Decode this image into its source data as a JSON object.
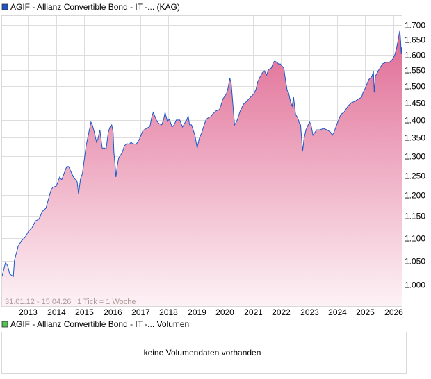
{
  "chart_data": {
    "type": "area",
    "title": "AGIF - Allianz Convertible Bond - IT -... (KAG)",
    "date_range": "31.01.12 - 15.04.26",
    "tick_info": "1 Tick = 1 Woche",
    "y_scale": "log",
    "ylim": [
      0.955,
      1.73
    ],
    "xlim": [
      2012.08,
      2026.3
    ],
    "y_ticks": [
      "1.000",
      "1.050",
      "1.100",
      "1.150",
      "1.200",
      "1.250",
      "1.300",
      "1.350",
      "1.400",
      "1.450",
      "1.500",
      "1.550",
      "1.600",
      "1.650",
      "1.700"
    ],
    "y_tick_values": [
      1.0,
      1.05,
      1.1,
      1.15,
      1.2,
      1.25,
      1.3,
      1.35,
      1.4,
      1.45,
      1.5,
      1.55,
      1.6,
      1.65,
      1.7
    ],
    "x_ticks": [
      "2013",
      "2014",
      "2015",
      "2016",
      "2017",
      "2018",
      "2019",
      "2020",
      "2021",
      "2022",
      "2023",
      "2024",
      "2025",
      "2026"
    ],
    "x_tick_values": [
      2013,
      2014,
      2015,
      2016,
      2017,
      2018,
      2019,
      2020,
      2021,
      2022,
      2023,
      2024,
      2025,
      2026
    ],
    "grid": true,
    "series": [
      {
        "name": "AGIF - Allianz Convertible Bond - IT -... (KAG)",
        "color": "#1a56c8",
        "points": [
          [
            2012.08,
            1.017
          ],
          [
            2012.2,
            1.046
          ],
          [
            2012.28,
            1.039
          ],
          [
            2012.35,
            1.022
          ],
          [
            2012.48,
            1.017
          ],
          [
            2012.52,
            1.051
          ],
          [
            2012.6,
            1.069
          ],
          [
            2012.65,
            1.081
          ],
          [
            2012.77,
            1.094
          ],
          [
            2012.89,
            1.101
          ],
          [
            2013.02,
            1.115
          ],
          [
            2013.14,
            1.123
          ],
          [
            2013.27,
            1.139
          ],
          [
            2013.39,
            1.143
          ],
          [
            2013.51,
            1.161
          ],
          [
            2013.64,
            1.169
          ],
          [
            2013.71,
            1.186
          ],
          [
            2013.81,
            1.211
          ],
          [
            2013.88,
            1.22
          ],
          [
            2014.01,
            1.223
          ],
          [
            2014.13,
            1.246
          ],
          [
            2014.2,
            1.239
          ],
          [
            2014.3,
            1.258
          ],
          [
            2014.38,
            1.273
          ],
          [
            2014.45,
            1.273
          ],
          [
            2014.5,
            1.264
          ],
          [
            2014.62,
            1.246
          ],
          [
            2014.75,
            1.234
          ],
          [
            2014.8,
            1.203
          ],
          [
            2014.87,
            1.241
          ],
          [
            2014.94,
            1.255
          ],
          [
            2015.02,
            1.3
          ],
          [
            2015.07,
            1.328
          ],
          [
            2015.12,
            1.347
          ],
          [
            2015.19,
            1.374
          ],
          [
            2015.24,
            1.394
          ],
          [
            2015.29,
            1.386
          ],
          [
            2015.36,
            1.366
          ],
          [
            2015.44,
            1.338
          ],
          [
            2015.49,
            1.347
          ],
          [
            2015.56,
            1.372
          ],
          [
            2015.64,
            1.322
          ],
          [
            2015.73,
            1.322
          ],
          [
            2015.78,
            1.319
          ],
          [
            2015.86,
            1.366
          ],
          [
            2015.93,
            1.382
          ],
          [
            2015.98,
            1.386
          ],
          [
            2016.03,
            1.366
          ],
          [
            2016.06,
            1.309
          ],
          [
            2016.1,
            1.276
          ],
          [
            2016.13,
            1.246
          ],
          [
            2016.18,
            1.276
          ],
          [
            2016.23,
            1.296
          ],
          [
            2016.35,
            1.309
          ],
          [
            2016.43,
            1.328
          ],
          [
            2016.52,
            1.334
          ],
          [
            2016.6,
            1.332
          ],
          [
            2016.67,
            1.338
          ],
          [
            2016.72,
            1.334
          ],
          [
            2016.85,
            1.332
          ],
          [
            2016.97,
            1.347
          ],
          [
            2017.09,
            1.37
          ],
          [
            2017.22,
            1.376
          ],
          [
            2017.34,
            1.382
          ],
          [
            2017.41,
            1.41
          ],
          [
            2017.46,
            1.422
          ],
          [
            2017.59,
            1.396
          ],
          [
            2017.66,
            1.39
          ],
          [
            2017.76,
            1.386
          ],
          [
            2017.83,
            1.402
          ],
          [
            2017.88,
            1.422
          ],
          [
            2017.96,
            1.396
          ],
          [
            2018.03,
            1.402
          ],
          [
            2018.13,
            1.38
          ],
          [
            2018.2,
            1.386
          ],
          [
            2018.28,
            1.4
          ],
          [
            2018.4,
            1.4
          ],
          [
            2018.5,
            1.38
          ],
          [
            2018.57,
            1.39
          ],
          [
            2018.65,
            1.4
          ],
          [
            2018.7,
            1.412
          ],
          [
            2018.75,
            1.386
          ],
          [
            2018.82,
            1.386
          ],
          [
            2018.94,
            1.357
          ],
          [
            2019.02,
            1.322
          ],
          [
            2019.09,
            1.347
          ],
          [
            2019.19,
            1.366
          ],
          [
            2019.27,
            1.386
          ],
          [
            2019.34,
            1.402
          ],
          [
            2019.41,
            1.406
          ],
          [
            2019.51,
            1.41
          ],
          [
            2019.56,
            1.416
          ],
          [
            2019.68,
            1.426
          ],
          [
            2019.81,
            1.43
          ],
          [
            2019.88,
            1.446
          ],
          [
            2019.93,
            1.461
          ],
          [
            2020.06,
            1.477
          ],
          [
            2020.13,
            1.498
          ],
          [
            2020.18,
            1.526
          ],
          [
            2020.23,
            1.509
          ],
          [
            2020.3,
            1.436
          ],
          [
            2020.35,
            1.386
          ],
          [
            2020.43,
            1.396
          ],
          [
            2020.55,
            1.426
          ],
          [
            2020.67,
            1.446
          ],
          [
            2020.8,
            1.456
          ],
          [
            2020.92,
            1.467
          ],
          [
            2021.04,
            1.477
          ],
          [
            2021.12,
            1.492
          ],
          [
            2021.17,
            1.513
          ],
          [
            2021.24,
            1.526
          ],
          [
            2021.34,
            1.542
          ],
          [
            2021.41,
            1.548
          ],
          [
            2021.49,
            1.535
          ],
          [
            2021.56,
            1.552
          ],
          [
            2021.66,
            1.557
          ],
          [
            2021.73,
            1.575
          ],
          [
            2021.78,
            1.579
          ],
          [
            2021.86,
            1.575
          ],
          [
            2021.91,
            1.57
          ],
          [
            2021.98,
            1.57
          ],
          [
            2022.03,
            1.564
          ],
          [
            2022.1,
            1.557
          ],
          [
            2022.15,
            1.526
          ],
          [
            2022.22,
            1.488
          ],
          [
            2022.27,
            1.481
          ],
          [
            2022.35,
            1.45
          ],
          [
            2022.4,
            1.44
          ],
          [
            2022.45,
            1.467
          ],
          [
            2022.52,
            1.416
          ],
          [
            2022.6,
            1.406
          ],
          [
            2022.65,
            1.392
          ],
          [
            2022.7,
            1.386
          ],
          [
            2022.77,
            1.313
          ],
          [
            2022.82,
            1.347
          ],
          [
            2022.89,
            1.372
          ],
          [
            2022.97,
            1.386
          ],
          [
            2023.02,
            1.394
          ],
          [
            2023.07,
            1.386
          ],
          [
            2023.14,
            1.357
          ],
          [
            2023.27,
            1.372
          ],
          [
            2023.39,
            1.372
          ],
          [
            2023.51,
            1.376
          ],
          [
            2023.64,
            1.372
          ],
          [
            2023.76,
            1.366
          ],
          [
            2023.83,
            1.357
          ],
          [
            2023.89,
            1.366
          ],
          [
            2024.01,
            1.392
          ],
          [
            2024.13,
            1.416
          ],
          [
            2024.25,
            1.423
          ],
          [
            2024.38,
            1.44
          ],
          [
            2024.5,
            1.45
          ],
          [
            2024.62,
            1.454
          ],
          [
            2024.75,
            1.461
          ],
          [
            2024.87,
            1.467
          ],
          [
            2024.92,
            1.481
          ],
          [
            2025.0,
            1.494
          ],
          [
            2025.12,
            1.52
          ],
          [
            2025.24,
            1.531
          ],
          [
            2025.29,
            1.546
          ],
          [
            2025.32,
            1.481
          ],
          [
            2025.36,
            1.531
          ],
          [
            2025.49,
            1.552
          ],
          [
            2025.61,
            1.57
          ],
          [
            2025.73,
            1.575
          ],
          [
            2025.86,
            1.575
          ],
          [
            2025.98,
            1.586
          ],
          [
            2026.06,
            1.602
          ],
          [
            2026.11,
            1.62
          ],
          [
            2026.16,
            1.643
          ],
          [
            2026.21,
            1.671
          ],
          [
            2026.23,
            1.681
          ],
          [
            2026.26,
            1.643
          ],
          [
            2026.28,
            1.602
          ],
          [
            2026.3,
            1.625
          ]
        ]
      }
    ],
    "fill_top_color": "#e06a93",
    "fill_bottom_color": "#fdf2f6",
    "grid_color": "#dddddd"
  },
  "volume_panel": {
    "legend": "AGIF - Allianz Convertible Bond - IT -... Volumen",
    "legend_color": "#55c255",
    "message": "keine Volumendaten vorhanden"
  }
}
